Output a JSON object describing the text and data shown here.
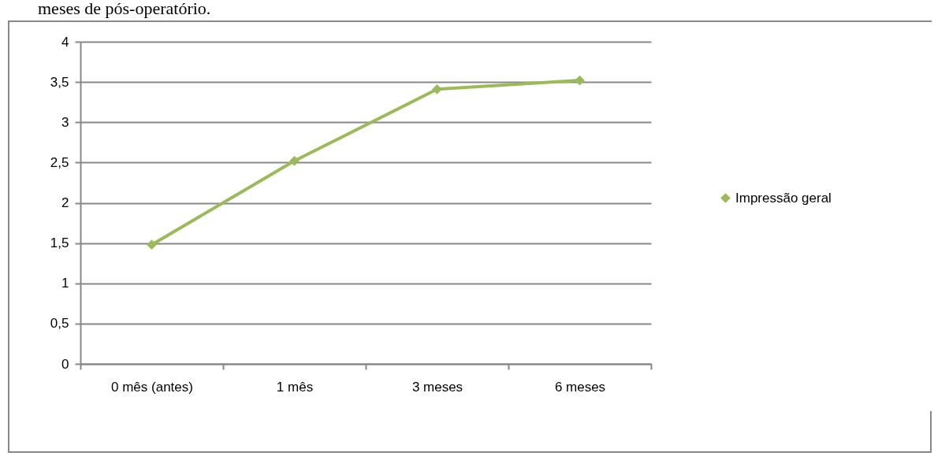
{
  "chart_data": {
    "type": "line",
    "title": "meses de pós-operatório.",
    "categories": [
      "0 mês (antes)",
      "1 mês",
      "3 meses",
      "6 meses"
    ],
    "series": [
      {
        "name": "Impressão geral",
        "color": "#9bbb59",
        "values": [
          1.48,
          2.52,
          3.41,
          3.52
        ]
      }
    ],
    "ylim": [
      0,
      4
    ],
    "yticks": [
      0,
      {
        "value": 0.5,
        "label": "0,5"
      },
      1,
      {
        "value": 1.5,
        "label": "1,5"
      },
      2,
      {
        "value": 2.5,
        "label": "2,5"
      },
      3,
      {
        "value": 3.5,
        "label": "3,5"
      },
      4
    ],
    "grid": "y",
    "legend": "right",
    "marker": "diamond",
    "line_style": "solid"
  }
}
